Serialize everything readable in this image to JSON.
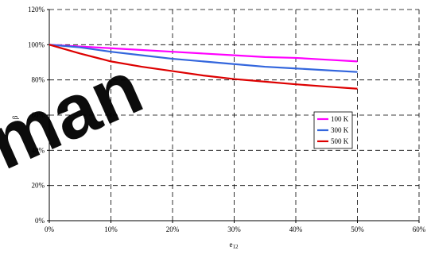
{
  "chart_data": {
    "type": "line",
    "title": "",
    "xlabel": "e",
    "xlabel_sub": "12",
    "ylabel": "β",
    "xlim": [
      0,
      0.6
    ],
    "ylim": [
      0,
      1.2
    ],
    "x_ticks": [
      "0%",
      "10%",
      "20%",
      "30%",
      "40%",
      "50%",
      "60%"
    ],
    "y_ticks": [
      "0%",
      "20%",
      "40%",
      "60%",
      "80%",
      "100%",
      "120%"
    ],
    "grid": true,
    "legend_position": "right",
    "series": [
      {
        "name": "100 K",
        "color": "#ff00ff",
        "x": [
          0,
          0.05,
          0.1,
          0.15,
          0.2,
          0.25,
          0.3,
          0.35,
          0.4,
          0.45,
          0.5
        ],
        "y": [
          1.0,
          0.99,
          0.98,
          0.97,
          0.96,
          0.95,
          0.94,
          0.93,
          0.925,
          0.915,
          0.905
        ]
      },
      {
        "name": "300 K",
        "color": "#3366dd",
        "x": [
          0,
          0.05,
          0.1,
          0.15,
          0.2,
          0.25,
          0.3,
          0.35,
          0.4,
          0.45,
          0.5
        ],
        "y": [
          1.0,
          0.985,
          0.96,
          0.94,
          0.92,
          0.905,
          0.89,
          0.875,
          0.865,
          0.855,
          0.845
        ]
      },
      {
        "name": "500 K",
        "color": "#dd0000",
        "x": [
          0,
          0.05,
          0.1,
          0.15,
          0.2,
          0.25,
          0.3,
          0.35,
          0.4,
          0.45,
          0.5
        ],
        "y": [
          1.0,
          0.95,
          0.905,
          0.875,
          0.85,
          0.825,
          0.805,
          0.79,
          0.775,
          0.762,
          0.75
        ]
      }
    ],
    "watermark": {
      "text": "man",
      "color": "#000000"
    }
  }
}
